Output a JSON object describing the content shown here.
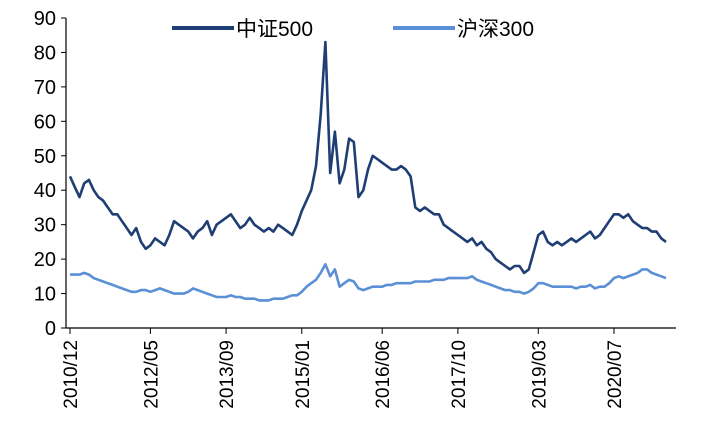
{
  "chart_data": {
    "type": "line",
    "title": "",
    "xlabel": "",
    "ylabel": "",
    "ylim": [
      0,
      90
    ],
    "yticks": [
      0,
      10,
      20,
      30,
      40,
      50,
      60,
      70,
      80,
      90
    ],
    "xticks": [
      "2010/12",
      "2012/05",
      "2013/09",
      "2015/01",
      "2016/06",
      "2017/10",
      "2019/03",
      "2020/07"
    ],
    "grid": false,
    "legend": "top-center",
    "series": [
      {
        "name": "中证500",
        "color": "#1f3e73",
        "points": [
          [
            "2010/12",
            44
          ],
          [
            "2011/01",
            41
          ],
          [
            "2011/02",
            38
          ],
          [
            "2011/03",
            42
          ],
          [
            "2011/04",
            43
          ],
          [
            "2011/05",
            40
          ],
          [
            "2011/06",
            38
          ],
          [
            "2011/07",
            37
          ],
          [
            "2011/08",
            35
          ],
          [
            "2011/09",
            33
          ],
          [
            "2011/10",
            33
          ],
          [
            "2011/11",
            31
          ],
          [
            "2011/12",
            29
          ],
          [
            "2012/01",
            27
          ],
          [
            "2012/02",
            29
          ],
          [
            "2012/03",
            25
          ],
          [
            "2012/04",
            23
          ],
          [
            "2012/05",
            24
          ],
          [
            "2012/06",
            26
          ],
          [
            "2012/07",
            25
          ],
          [
            "2012/08",
            24
          ],
          [
            "2012/09",
            27
          ],
          [
            "2012/10",
            31
          ],
          [
            "2012/11",
            30
          ],
          [
            "2012/12",
            29
          ],
          [
            "2013/01",
            28
          ],
          [
            "2013/02",
            26
          ],
          [
            "2013/03",
            28
          ],
          [
            "2013/04",
            29
          ],
          [
            "2013/05",
            31
          ],
          [
            "2013/06",
            27
          ],
          [
            "2013/07",
            30
          ],
          [
            "2013/08",
            31
          ],
          [
            "2013/09",
            32
          ],
          [
            "2013/10",
            33
          ],
          [
            "2013/11",
            31
          ],
          [
            "2013/12",
            29
          ],
          [
            "2014/01",
            30
          ],
          [
            "2014/02",
            32
          ],
          [
            "2014/03",
            30
          ],
          [
            "2014/04",
            29
          ],
          [
            "2014/05",
            28
          ],
          [
            "2014/06",
            29
          ],
          [
            "2014/07",
            28
          ],
          [
            "2014/08",
            30
          ],
          [
            "2014/09",
            29
          ],
          [
            "2014/10",
            28
          ],
          [
            "2014/11",
            27
          ],
          [
            "2014/12",
            30
          ],
          [
            "2015/01",
            34
          ],
          [
            "2015/02",
            37
          ],
          [
            "2015/03",
            40
          ],
          [
            "2015/04",
            47
          ],
          [
            "2015/05",
            62
          ],
          [
            "2015/06",
            83
          ],
          [
            "2015/07",
            45
          ],
          [
            "2015/08",
            57
          ],
          [
            "2015/09",
            42
          ],
          [
            "2015/10",
            46
          ],
          [
            "2015/11",
            55
          ],
          [
            "2015/12",
            54
          ],
          [
            "2016/01",
            38
          ],
          [
            "2016/02",
            40
          ],
          [
            "2016/03",
            46
          ],
          [
            "2016/04",
            50
          ],
          [
            "2016/05",
            49
          ],
          [
            "2016/06",
            48
          ],
          [
            "2016/07",
            47
          ],
          [
            "2016/08",
            46
          ],
          [
            "2016/09",
            46
          ],
          [
            "2016/10",
            47
          ],
          [
            "2016/11",
            46
          ],
          [
            "2016/12",
            44
          ],
          [
            "2017/01",
            35
          ],
          [
            "2017/02",
            34
          ],
          [
            "2017/03",
            35
          ],
          [
            "2017/04",
            34
          ],
          [
            "2017/05",
            33
          ],
          [
            "2017/06",
            33
          ],
          [
            "2017/07",
            30
          ],
          [
            "2017/08",
            29
          ],
          [
            "2017/09",
            28
          ],
          [
            "2017/10",
            27
          ],
          [
            "2017/11",
            26
          ],
          [
            "2017/12",
            25
          ],
          [
            "2018/01",
            26
          ],
          [
            "2018/02",
            24
          ],
          [
            "2018/03",
            25
          ],
          [
            "2018/04",
            23
          ],
          [
            "2018/05",
            22
          ],
          [
            "2018/06",
            20
          ],
          [
            "2018/07",
            19
          ],
          [
            "2018/08",
            18
          ],
          [
            "2018/09",
            17
          ],
          [
            "2018/10",
            18
          ],
          [
            "2018/11",
            18
          ],
          [
            "2018/12",
            16
          ],
          [
            "2019/01",
            17
          ],
          [
            "2019/02",
            22
          ],
          [
            "2019/03",
            27
          ],
          [
            "2019/04",
            28
          ],
          [
            "2019/05",
            25
          ],
          [
            "2019/06",
            24
          ],
          [
            "2019/07",
            25
          ],
          [
            "2019/08",
            24
          ],
          [
            "2019/09",
            25
          ],
          [
            "2019/10",
            26
          ],
          [
            "2019/11",
            25
          ],
          [
            "2019/12",
            26
          ],
          [
            "2020/01",
            27
          ],
          [
            "2020/02",
            28
          ],
          [
            "2020/03",
            26
          ],
          [
            "2020/04",
            27
          ],
          [
            "2020/05",
            29
          ],
          [
            "2020/06",
            31
          ],
          [
            "2020/07",
            33
          ],
          [
            "2020/08",
            33
          ],
          [
            "2020/09",
            32
          ],
          [
            "2020/10",
            33
          ],
          [
            "2020/11",
            31
          ],
          [
            "2020/12",
            30
          ],
          [
            "2021/01",
            29
          ],
          [
            "2021/02",
            29
          ],
          [
            "2021/03",
            28
          ],
          [
            "2021/04",
            28
          ],
          [
            "2021/05",
            26
          ],
          [
            "2021/06",
            25
          ]
        ]
      },
      {
        "name": "沪深300",
        "color": "#5b8fd6",
        "points": [
          [
            "2010/12",
            15.5
          ],
          [
            "2011/01",
            15.5
          ],
          [
            "2011/02",
            15.5
          ],
          [
            "2011/03",
            16
          ],
          [
            "2011/04",
            15.5
          ],
          [
            "2011/05",
            14.5
          ],
          [
            "2011/06",
            14
          ],
          [
            "2011/07",
            13.5
          ],
          [
            "2011/08",
            13
          ],
          [
            "2011/09",
            12.5
          ],
          [
            "2011/10",
            12
          ],
          [
            "2011/11",
            11.5
          ],
          [
            "2011/12",
            11
          ],
          [
            "2012/01",
            10.5
          ],
          [
            "2012/02",
            10.5
          ],
          [
            "2012/03",
            11
          ],
          [
            "2012/04",
            11
          ],
          [
            "2012/05",
            10.5
          ],
          [
            "2012/06",
            11
          ],
          [
            "2012/07",
            11.5
          ],
          [
            "2012/08",
            11
          ],
          [
            "2012/09",
            10.5
          ],
          [
            "2012/10",
            10
          ],
          [
            "2012/11",
            10
          ],
          [
            "2012/12",
            10
          ],
          [
            "2013/01",
            10.5
          ],
          [
            "2013/02",
            11.5
          ],
          [
            "2013/03",
            11
          ],
          [
            "2013/04",
            10.5
          ],
          [
            "2013/05",
            10
          ],
          [
            "2013/06",
            9.5
          ],
          [
            "2013/07",
            9
          ],
          [
            "2013/08",
            9
          ],
          [
            "2013/09",
            9
          ],
          [
            "2013/10",
            9.5
          ],
          [
            "2013/11",
            9
          ],
          [
            "2013/12",
            9
          ],
          [
            "2014/01",
            8.5
          ],
          [
            "2014/02",
            8.5
          ],
          [
            "2014/03",
            8.5
          ],
          [
            "2014/04",
            8
          ],
          [
            "2014/05",
            8
          ],
          [
            "2014/06",
            8
          ],
          [
            "2014/07",
            8.5
          ],
          [
            "2014/08",
            8.5
          ],
          [
            "2014/09",
            8.5
          ],
          [
            "2014/10",
            9
          ],
          [
            "2014/11",
            9.5
          ],
          [
            "2014/12",
            9.5
          ],
          [
            "2015/01",
            10.5
          ],
          [
            "2015/02",
            12
          ],
          [
            "2015/03",
            13
          ],
          [
            "2015/04",
            14
          ],
          [
            "2015/05",
            16
          ],
          [
            "2015/06",
            18.5
          ],
          [
            "2015/07",
            15
          ],
          [
            "2015/08",
            17
          ],
          [
            "2015/09",
            12
          ],
          [
            "2015/10",
            13
          ],
          [
            "2015/11",
            14
          ],
          [
            "2015/12",
            13.5
          ],
          [
            "2016/01",
            11.5
          ],
          [
            "2016/02",
            11
          ],
          [
            "2016/03",
            11.5
          ],
          [
            "2016/04",
            12
          ],
          [
            "2016/05",
            12
          ],
          [
            "2016/06",
            12
          ],
          [
            "2016/07",
            12.5
          ],
          [
            "2016/08",
            12.5
          ],
          [
            "2016/09",
            13
          ],
          [
            "2016/10",
            13
          ],
          [
            "2016/11",
            13
          ],
          [
            "2016/12",
            13
          ],
          [
            "2017/01",
            13.5
          ],
          [
            "2017/02",
            13.5
          ],
          [
            "2017/03",
            13.5
          ],
          [
            "2017/04",
            13.5
          ],
          [
            "2017/05",
            14
          ],
          [
            "2017/06",
            14
          ],
          [
            "2017/07",
            14
          ],
          [
            "2017/08",
            14.5
          ],
          [
            "2017/09",
            14.5
          ],
          [
            "2017/10",
            14.5
          ],
          [
            "2017/11",
            14.5
          ],
          [
            "2017/12",
            14.5
          ],
          [
            "2018/01",
            15
          ],
          [
            "2018/02",
            14
          ],
          [
            "2018/03",
            13.5
          ],
          [
            "2018/04",
            13
          ],
          [
            "2018/05",
            12.5
          ],
          [
            "2018/06",
            12
          ],
          [
            "2018/07",
            11.5
          ],
          [
            "2018/08",
            11
          ],
          [
            "2018/09",
            11
          ],
          [
            "2018/10",
            10.5
          ],
          [
            "2018/11",
            10.5
          ],
          [
            "2018/12",
            10
          ],
          [
            "2019/01",
            10.5
          ],
          [
            "2019/02",
            11.5
          ],
          [
            "2019/03",
            13
          ],
          [
            "2019/04",
            13
          ],
          [
            "2019/05",
            12.5
          ],
          [
            "2019/06",
            12
          ],
          [
            "2019/07",
            12
          ],
          [
            "2019/08",
            12
          ],
          [
            "2019/09",
            12
          ],
          [
            "2019/10",
            12
          ],
          [
            "2019/11",
            11.5
          ],
          [
            "2019/12",
            12
          ],
          [
            "2020/01",
            12
          ],
          [
            "2020/02",
            12.5
          ],
          [
            "2020/03",
            11.5
          ],
          [
            "2020/04",
            12
          ],
          [
            "2020/05",
            12
          ],
          [
            "2020/06",
            13
          ],
          [
            "2020/07",
            14.5
          ],
          [
            "2020/08",
            15
          ],
          [
            "2020/09",
            14.5
          ],
          [
            "2020/10",
            15
          ],
          [
            "2020/11",
            15.5
          ],
          [
            "2020/12",
            16
          ],
          [
            "2021/01",
            17
          ],
          [
            "2021/02",
            17
          ],
          [
            "2021/03",
            16
          ],
          [
            "2021/04",
            15.5
          ],
          [
            "2021/05",
            15
          ],
          [
            "2021/06",
            14.5
          ]
        ]
      }
    ]
  }
}
